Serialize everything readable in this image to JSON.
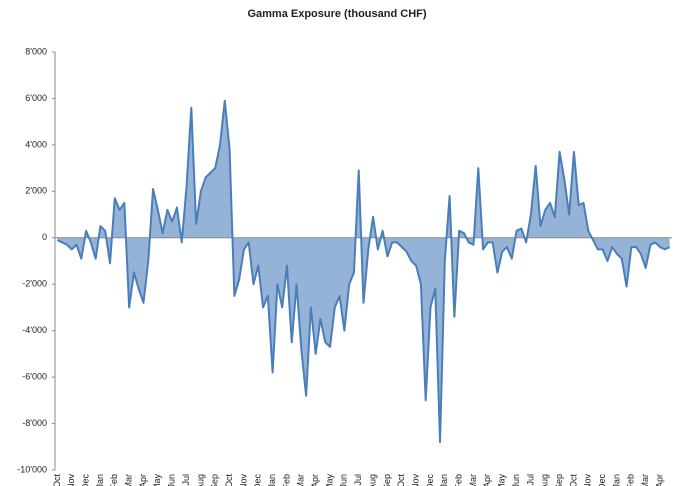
{
  "chart_data": {
    "type": "area",
    "title": "Gamma Exposure  (thousand CHF)",
    "categories": [
      "Oct",
      null,
      null,
      "Nov",
      null,
      null,
      "Dec",
      null,
      null,
      "Jan",
      null,
      null,
      "Feb",
      null,
      null,
      "Mar",
      null,
      null,
      "Apr",
      null,
      null,
      "May",
      null,
      null,
      "Jun",
      null,
      null,
      "Jul",
      null,
      null,
      "Aug",
      null,
      null,
      "Sep",
      null,
      null,
      "Oct",
      null,
      null,
      "Nov",
      null,
      null,
      "Dec",
      null,
      null,
      "Jan",
      null,
      null,
      "Feb",
      null,
      null,
      "Mar",
      null,
      null,
      "Apr",
      null,
      null,
      "May",
      null,
      null,
      "Jun",
      null,
      null,
      "Jul",
      null,
      null,
      "Aug",
      null,
      null,
      "Sep",
      null,
      null,
      "Oct",
      null,
      null,
      "Nov",
      null,
      null,
      "Dec",
      null,
      null,
      "Jan",
      null,
      null,
      "Feb",
      null,
      null,
      "Mar",
      null,
      null,
      "Apr",
      null,
      null,
      "May",
      null,
      null,
      "Jun",
      null,
      null,
      "Jul",
      null,
      null,
      "Aug",
      null,
      null,
      "Sep",
      null,
      null,
      "Oct",
      null,
      null,
      "Nov",
      null,
      null,
      "Dec",
      null,
      null,
      "Jan",
      null,
      null,
      "Feb",
      null,
      null,
      "Mar",
      null,
      null,
      "Apr",
      null,
      null
    ],
    "values": [
      -100,
      -200,
      -300,
      -500,
      -300,
      -900,
      300,
      -200,
      -900,
      500,
      300,
      -1100,
      1700,
      1200,
      1500,
      -3000,
      -1500,
      -2200,
      -2800,
      -1000,
      2100,
      1200,
      200,
      1200,
      700,
      1300,
      -200,
      2200,
      5600,
      600,
      2000,
      2600,
      2800,
      3000,
      4000,
      5900,
      3800,
      -2500,
      -1800,
      -500,
      -200,
      -2000,
      -1200,
      -3000,
      -2500,
      -5800,
      -2000,
      -3000,
      -1200,
      -4500,
      -2000,
      -4800,
      -6800,
      -3000,
      -5000,
      -3500,
      -4500,
      -4700,
      -3000,
      -2500,
      -4000,
      -2000,
      -1500,
      2900,
      -2800,
      -500,
      900,
      -500,
      300,
      -800,
      -200,
      -200,
      -400,
      -600,
      -1000,
      -1200,
      -2000,
      -7000,
      -3000,
      -2200,
      -8800,
      -1000,
      1800,
      -3400,
      300,
      200,
      -200,
      -300,
      3000,
      -500,
      -200,
      -200,
      -1500,
      -600,
      -400,
      -900,
      300,
      400,
      -200,
      1000,
      3100,
      500,
      1200,
      1500,
      900,
      3700,
      2500,
      1000,
      3700,
      1400,
      1500,
      300,
      -100,
      -500,
      -500,
      -1000,
      -400,
      -700,
      -900,
      -2100,
      -400,
      -400,
      -700,
      -1300,
      -300,
      -200,
      -400,
      -500,
      -400
    ],
    "color": "#4a7ebb",
    "fill_color": "#95b3d7",
    "ylim": [
      -10000,
      8000
    ],
    "yticks": [
      {
        "value": -10000,
        "label": "-10'000"
      },
      {
        "value": -8000,
        "label": "-8'000"
      },
      {
        "value": -6000,
        "label": "-6'000"
      },
      {
        "value": -4000,
        "label": "-4'000"
      },
      {
        "value": -2000,
        "label": "-2'000"
      },
      0,
      {
        "value": 2000,
        "label": "2'000"
      },
      {
        "value": 4000,
        "label": "4'000"
      },
      {
        "value": 6000,
        "label": "6'000"
      },
      {
        "value": 8000,
        "label": "8'000"
      }
    ],
    "grid": false
  }
}
